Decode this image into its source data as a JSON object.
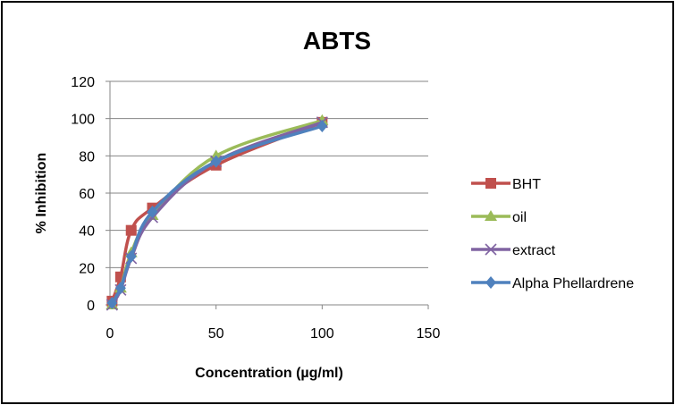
{
  "chart_data": {
    "type": "line",
    "title": "ABTS",
    "xlabel": "Concentration (µg/ml)",
    "ylabel": "% Inhibition",
    "xlim": [
      0,
      150
    ],
    "ylim": [
      0,
      120
    ],
    "xticks": [
      0,
      50,
      100,
      150
    ],
    "yticks": [
      0,
      20,
      40,
      60,
      80,
      100,
      120
    ],
    "grid": "horizontal",
    "legend_position": "right",
    "series": [
      {
        "name": "BHT",
        "color": "#c0504d",
        "marker": "square",
        "x": [
          1,
          5,
          10,
          20,
          50,
          100
        ],
        "y": [
          2,
          15,
          40,
          52,
          75,
          98
        ]
      },
      {
        "name": "oil",
        "color": "#9bbb59",
        "marker": "triangle",
        "x": [
          1,
          5,
          10,
          20,
          50,
          100
        ],
        "y": [
          0,
          9,
          28,
          48,
          80,
          99
        ]
      },
      {
        "name": "extract",
        "color": "#8064a2",
        "marker": "x",
        "x": [
          1,
          5,
          10,
          20,
          50,
          100
        ],
        "y": [
          0,
          8,
          25,
          47,
          77,
          98
        ]
      },
      {
        "name": "Alpha Phellardrene",
        "color": "#4f81bd",
        "marker": "diamond",
        "x": [
          1,
          5,
          10,
          20,
          50,
          100
        ],
        "y": [
          1,
          9,
          26,
          50,
          77,
          96
        ]
      }
    ]
  }
}
